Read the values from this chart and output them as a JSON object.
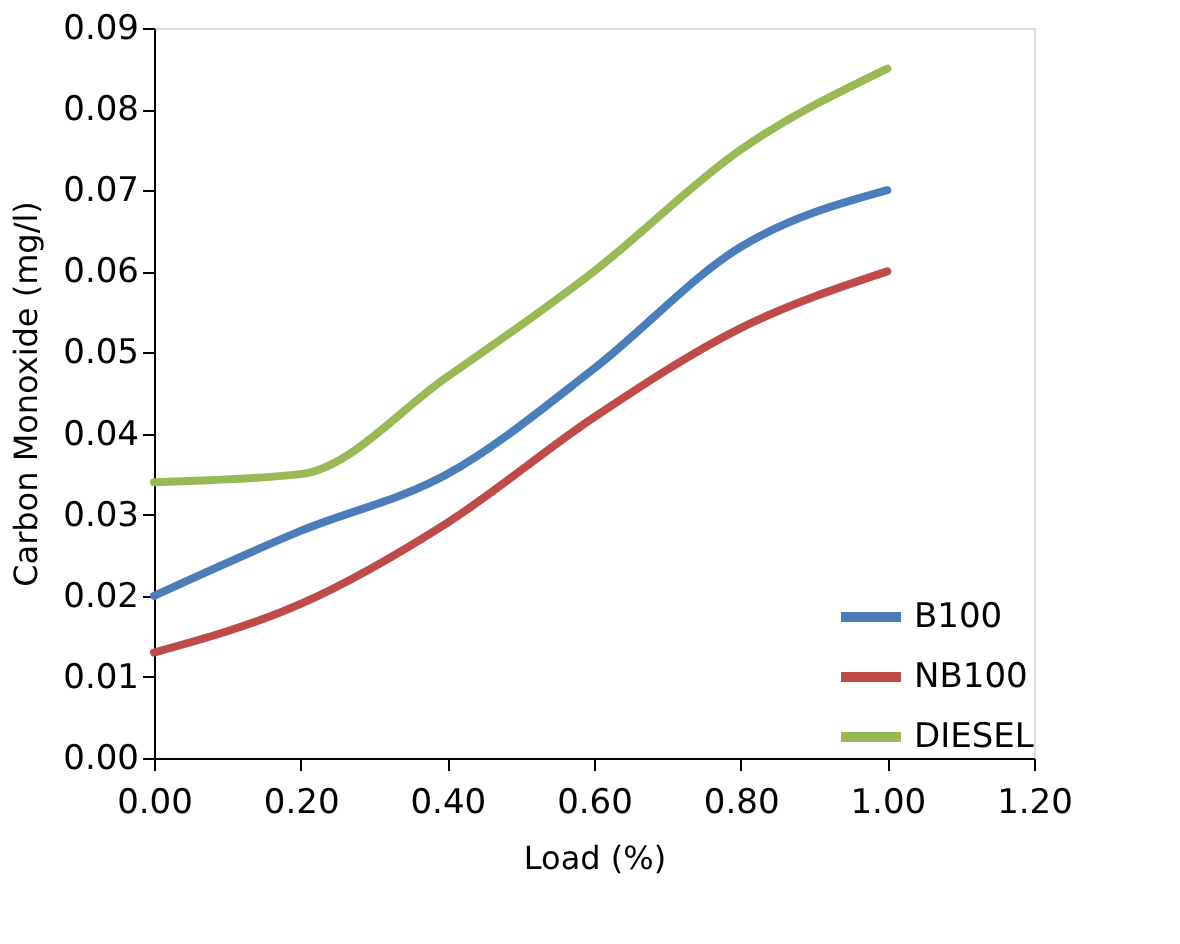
{
  "chart_data": {
    "type": "line",
    "xlabel": "Load (%)",
    "ylabel": "Carbon Monoxide (mg/l)",
    "x": [
      0,
      0.2,
      0.4,
      0.6,
      0.8,
      1.0
    ],
    "series": [
      {
        "name": "B100",
        "color": "#4a7ebb",
        "values": [
          0.02,
          0.028,
          0.035,
          0.048,
          0.063,
          0.07
        ]
      },
      {
        "name": "NB100",
        "color": "#be4b48",
        "values": [
          0.013,
          0.019,
          0.029,
          0.042,
          0.053,
          0.06
        ]
      },
      {
        "name": "DIESEL",
        "color": "#98b954",
        "values": [
          0.034,
          0.035,
          0.047,
          0.06,
          0.075,
          0.085
        ]
      }
    ],
    "xlim": [
      0,
      1.2
    ],
    "xticks": [
      {
        "value": 0,
        "label": "0.00"
      },
      {
        "value": 0.2,
        "label": "0.20"
      },
      {
        "value": 0.4,
        "label": "0.40"
      },
      {
        "value": 0.6,
        "label": "0.60"
      },
      {
        "value": 0.8,
        "label": "0.80"
      },
      {
        "value": 1.0,
        "label": "1.00"
      },
      {
        "value": 1.2,
        "label": "1.20"
      }
    ],
    "ylim": [
      0,
      0.09
    ],
    "yticks": [
      {
        "value": 0,
        "label": "0.00"
      },
      0.01,
      0.02,
      0.03,
      0.04,
      0.05,
      0.06,
      0.07,
      0.08,
      0.09
    ],
    "grid": false,
    "legend": "bottom right",
    "marker": "none",
    "line_style": "solid"
  }
}
